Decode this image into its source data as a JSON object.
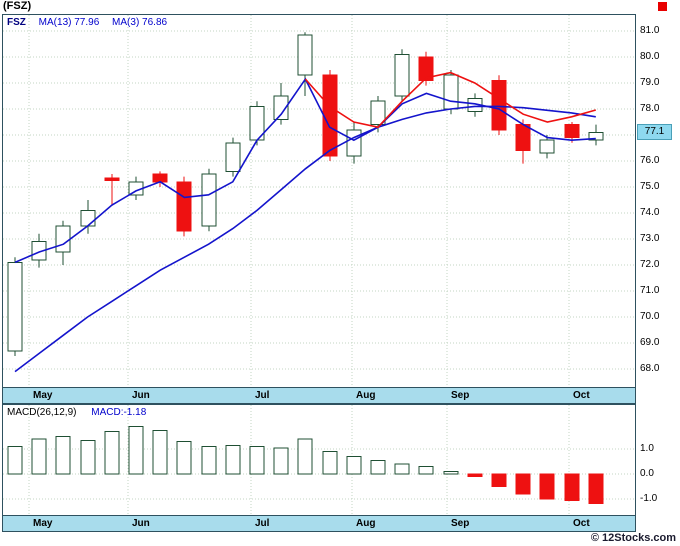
{
  "header": {
    "title": "(FSZ)"
  },
  "footer": {
    "credit": "© 12Stocks.com"
  },
  "chart_data": [
    {
      "type": "candlestick",
      "title": "FSZ daily price chart with moving averages",
      "legend": {
        "symbol": "FSZ",
        "ma13": "MA(13) 77.96",
        "ma3": "MA(3) 76.86"
      },
      "last_price": "77.1",
      "x_months": [
        "May",
        "Jun",
        "Jul",
        "Aug",
        "Sep",
        "Oct"
      ],
      "y_ticks": [
        "81.0",
        "80.0",
        "79.0",
        "78.0",
        "77.0",
        "76.0",
        "75.0",
        "74.0",
        "73.0",
        "72.0",
        "71.0",
        "70.0",
        "69.0",
        "68.0"
      ],
      "ylim": [
        67.6,
        81.2
      ],
      "grid": true,
      "candles": [
        {
          "o": 68.7,
          "h": 72.3,
          "l": 68.5,
          "c": 72.1
        },
        {
          "o": 72.2,
          "h": 73.2,
          "l": 71.9,
          "c": 72.9
        },
        {
          "o": 72.5,
          "h": 73.7,
          "l": 72.0,
          "c": 73.5
        },
        {
          "o": 73.5,
          "h": 74.5,
          "l": 73.2,
          "c": 74.1
        },
        {
          "o": 75.35,
          "h": 75.5,
          "l": 74.3,
          "c": 75.25
        },
        {
          "o": 74.7,
          "h": 75.4,
          "l": 74.5,
          "c": 75.2
        },
        {
          "o": 75.5,
          "h": 75.6,
          "l": 75.0,
          "c": 75.2
        },
        {
          "o": 75.2,
          "h": 75.4,
          "l": 73.1,
          "c": 73.3
        },
        {
          "o": 73.5,
          "h": 75.7,
          "l": 73.3,
          "c": 75.5
        },
        {
          "o": 75.6,
          "h": 76.9,
          "l": 75.4,
          "c": 76.7
        },
        {
          "o": 76.8,
          "h": 78.3,
          "l": 76.6,
          "c": 78.1
        },
        {
          "o": 77.6,
          "h": 79.0,
          "l": 77.4,
          "c": 78.5
        },
        {
          "o": 79.3,
          "h": 80.95,
          "l": 78.5,
          "c": 80.85
        },
        {
          "o": 79.3,
          "h": 79.5,
          "l": 76.0,
          "c": 76.2
        },
        {
          "o": 76.2,
          "h": 77.5,
          "l": 75.9,
          "c": 77.2
        },
        {
          "o": 77.4,
          "h": 78.5,
          "l": 77.1,
          "c": 78.3
        },
        {
          "o": 78.5,
          "h": 80.3,
          "l": 78.3,
          "c": 80.1
        },
        {
          "o": 80.0,
          "h": 80.2,
          "l": 78.9,
          "c": 79.1
        },
        {
          "o": 78.0,
          "h": 79.5,
          "l": 77.8,
          "c": 79.3
        },
        {
          "o": 77.9,
          "h": 78.6,
          "l": 77.7,
          "c": 78.4
        },
        {
          "o": 79.1,
          "h": 79.3,
          "l": 77.0,
          "c": 77.2
        },
        {
          "o": 77.4,
          "h": 77.6,
          "l": 75.9,
          "c": 76.4
        },
        {
          "o": 76.3,
          "h": 77.0,
          "l": 76.1,
          "c": 76.8
        },
        {
          "o": 77.4,
          "h": 77.5,
          "l": 76.7,
          "c": 76.9
        },
        {
          "o": 76.8,
          "h": 77.4,
          "l": 76.6,
          "c": 77.1
        }
      ],
      "ma_lines": {
        "slow_blue": [
          67.9,
          68.6,
          69.3,
          70.0,
          70.6,
          71.2,
          71.8,
          72.3,
          72.8,
          73.4,
          74.1,
          74.9,
          75.7,
          76.4,
          76.9,
          77.3,
          77.6,
          77.85,
          78.0,
          78.1,
          78.1,
          78.05,
          77.95,
          77.85,
          77.7
        ],
        "fast_blue": [
          72.1,
          72.5,
          72.8,
          73.5,
          74.3,
          74.85,
          75.2,
          74.6,
          74.7,
          75.2,
          76.8,
          77.8,
          79.15,
          77.3,
          76.8,
          77.3,
          78.2,
          78.6,
          78.3,
          78.2,
          78.0,
          77.4,
          76.9,
          76.8,
          76.86
        ],
        "red": {
          "start_index": 12,
          "values": [
            79.15,
            78.1,
            77.5,
            77.3,
            78.3,
            79.2,
            79.4,
            79.0,
            78.4,
            77.8,
            77.5,
            77.7,
            77.96
          ]
        }
      },
      "colors": {
        "up": "#1f4f33",
        "down": "#ee1111",
        "ma_blue": "#1414cc",
        "ma_red": "#ee1111",
        "band": "#a8dcec",
        "grid": "#c3d6c3",
        "tag_bg": "#8ed9ef"
      }
    },
    {
      "type": "bar",
      "title": "MACD(26,12,9)",
      "legend_value": "MACD:-1.18",
      "y_ticks": [
        "1.0",
        "0.0",
        "-1.0"
      ],
      "ylim": [
        -1.4,
        2.1
      ],
      "x_months": [
        "May",
        "Jun",
        "Jul",
        "Aug",
        "Sep",
        "Oct"
      ],
      "values": [
        1.1,
        1.4,
        1.5,
        1.35,
        1.7,
        1.9,
        1.75,
        1.3,
        1.1,
        1.15,
        1.1,
        1.05,
        1.4,
        0.9,
        0.7,
        0.55,
        0.4,
        0.3,
        0.1,
        -0.1,
        -0.5,
        -0.8,
        -1.0,
        -1.05,
        -1.18
      ]
    }
  ]
}
